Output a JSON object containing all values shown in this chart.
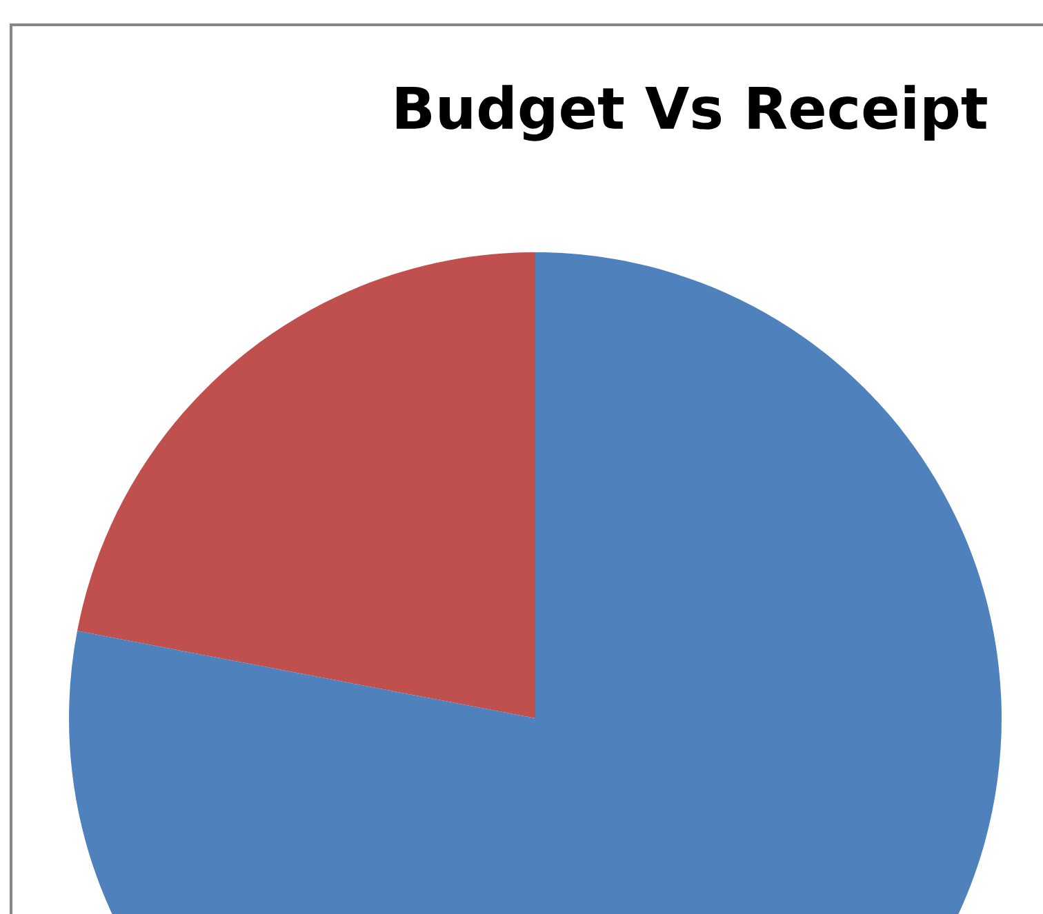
{
  "chart_data": {
    "type": "pie",
    "title": "Budget Vs Receipt",
    "categories": [
      null,
      null
    ],
    "values": [
      22,
      78
    ],
    "colors": [
      "#c0504d",
      "#4f81bd"
    ]
  }
}
